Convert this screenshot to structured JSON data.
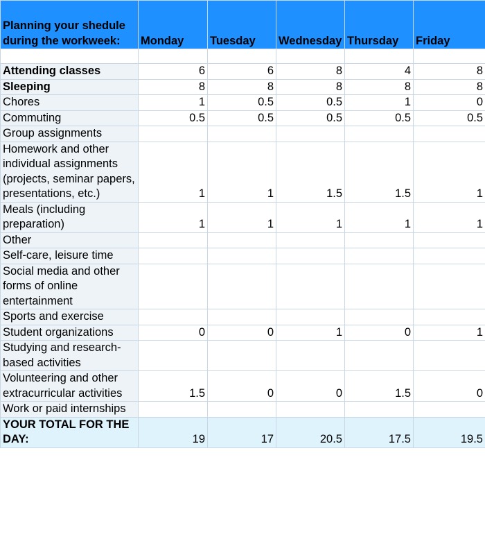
{
  "header": {
    "title": "Planning your shedule during the workweek:",
    "days": [
      "Monday",
      "Tuesday",
      "Wednesday",
      "Thursday",
      "Friday"
    ]
  },
  "rows": [
    {
      "label": "Attending classes",
      "bold": true,
      "values": [
        "6",
        "6",
        "8",
        "4",
        "8"
      ]
    },
    {
      "label": "Sleeping",
      "bold": true,
      "values": [
        "8",
        "8",
        "8",
        "8",
        "8"
      ]
    },
    {
      "label": "Chores",
      "bold": false,
      "values": [
        "1",
        "0.5",
        "0.5",
        "1",
        "0"
      ]
    },
    {
      "label": "Commuting",
      "bold": false,
      "values": [
        "0.5",
        "0.5",
        "0.5",
        "0.5",
        "0.5"
      ]
    },
    {
      "label": "Group assignments",
      "bold": false,
      "values": [
        "",
        "",
        "",
        "",
        ""
      ]
    },
    {
      "label": "Homework and other individual assignments (projects, seminar papers, presentations, etc.)",
      "bold": false,
      "values": [
        "1",
        "1",
        "1.5",
        "1.5",
        "1"
      ]
    },
    {
      "label": "Meals (including preparation)",
      "bold": false,
      "values": [
        "1",
        "1",
        "1",
        "1",
        "1"
      ]
    },
    {
      "label": "Other",
      "bold": false,
      "values": [
        "",
        "",
        "",
        "",
        ""
      ]
    },
    {
      "label": "Self-care, leisure time",
      "bold": false,
      "values": [
        "",
        "",
        "",
        "",
        ""
      ]
    },
    {
      "label": "Social media and other forms of online entertainment",
      "bold": false,
      "values": [
        "",
        "",
        "",
        "",
        ""
      ]
    },
    {
      "label": "Sports and exercise",
      "bold": false,
      "values": [
        "",
        "",
        "",
        "",
        ""
      ]
    },
    {
      "label": "Student organizations",
      "bold": false,
      "values": [
        "0",
        "0",
        "1",
        "0",
        "1"
      ]
    },
    {
      "label": "Studying and research-based activities",
      "bold": false,
      "values": [
        "",
        "",
        "",
        "",
        ""
      ]
    },
    {
      "label": "Volunteering and other extracurricular activities",
      "bold": false,
      "values": [
        "1.5",
        "0",
        "0",
        "1.5",
        "0"
      ]
    },
    {
      "label": "Work or paid internships",
      "bold": false,
      "values": [
        "",
        "",
        "",
        "",
        ""
      ]
    }
  ],
  "total": {
    "label": "YOUR TOTAL FOR THE DAY:",
    "values": [
      "19",
      "17",
      "20.5",
      "17.5",
      "19.5"
    ]
  },
  "colors": {
    "header_bg": "#1e90ff",
    "label_bg": "#eef3f8",
    "total_bg": "#dff3fd",
    "grid": "#c9d6e3"
  }
}
